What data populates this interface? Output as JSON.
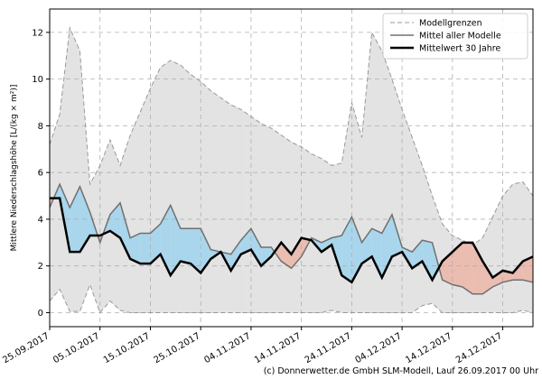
{
  "chart_data": {
    "type": "band-line",
    "y_label": "Mittlere Niederschlagshöhe [L/(kg × m²)]",
    "footer": "(c) Donnerwetter.de GmbH SLM-Modell, Lauf 26.09.2017 00 Uhr",
    "x": [
      "2017-09-25",
      "2017-09-27",
      "2017-09-29",
      "2017-10-01",
      "2017-10-03",
      "2017-10-05",
      "2017-10-07",
      "2017-10-09",
      "2017-10-11",
      "2017-10-13",
      "2017-10-15",
      "2017-10-17",
      "2017-10-19",
      "2017-10-21",
      "2017-10-23",
      "2017-10-25",
      "2017-10-27",
      "2017-10-29",
      "2017-10-31",
      "2017-11-02",
      "2017-11-04",
      "2017-11-06",
      "2017-11-08",
      "2017-11-10",
      "2017-11-12",
      "2017-11-14",
      "2017-11-16",
      "2017-11-18",
      "2017-11-20",
      "2017-11-22",
      "2017-11-24",
      "2017-11-26",
      "2017-11-28",
      "2017-11-30",
      "2017-12-02",
      "2017-12-04",
      "2017-12-06",
      "2017-12-08",
      "2017-12-10",
      "2017-12-12",
      "2017-12-14",
      "2017-12-16",
      "2017-12-18",
      "2017-12-20",
      "2017-12-22",
      "2017-12-24",
      "2017-12-26",
      "2017-12-28",
      "2017-12-30"
    ],
    "series": [
      {
        "name": "Modellgrenzen",
        "color": "#999999",
        "fill": "#e3e3e3",
        "dashed": true,
        "upper": [
          7.2,
          8.5,
          12.2,
          11.2,
          5.5,
          6.3,
          7.4,
          6.3,
          7.6,
          8.6,
          9.6,
          10.5,
          10.8,
          10.6,
          10.2,
          9.9,
          9.5,
          9.2,
          8.9,
          8.7,
          8.4,
          8.1,
          7.9,
          7.6,
          7.3,
          7.1,
          6.8,
          6.6,
          6.3,
          6.4,
          9.0,
          7.5,
          12.0,
          11.2,
          10.0,
          8.7,
          7.5,
          6.3,
          5.0,
          3.8,
          3.3,
          3.1,
          2.9,
          3.2,
          4.1,
          5.0,
          5.5,
          5.6,
          5.0
        ],
        "lower": [
          0.5,
          1.0,
          0.05,
          0.05,
          1.2,
          0,
          0.5,
          0.1,
          0,
          0,
          0,
          0,
          0,
          0,
          0,
          0,
          0,
          0,
          0,
          0,
          0,
          0,
          0,
          0,
          0,
          0,
          0,
          0,
          0.1,
          0,
          0,
          0,
          0,
          0,
          0,
          0,
          0,
          0.3,
          0.4,
          0,
          0,
          0,
          0,
          0,
          0,
          0,
          0,
          0.1,
          0
        ]
      },
      {
        "name": "Mittel aller Modelle",
        "color": "#707070",
        "values": [
          4.5,
          5.5,
          4.5,
          5.4,
          4.3,
          3.0,
          4.2,
          4.7,
          3.2,
          3.4,
          3.4,
          3.8,
          4.6,
          3.6,
          3.6,
          3.6,
          2.7,
          2.6,
          2.5,
          3.1,
          3.6,
          2.8,
          2.8,
          2.2,
          1.9,
          2.4,
          3.2,
          3.0,
          3.2,
          3.3,
          4.1,
          3.0,
          3.6,
          3.4,
          4.2,
          2.8,
          2.6,
          3.1,
          3.0,
          1.4,
          1.2,
          1.1,
          0.8,
          0.8,
          1.1,
          1.3,
          1.4,
          1.4,
          1.3
        ]
      },
      {
        "name": "Mittelwert 30 Jahre",
        "color": "#000000",
        "values": [
          4.9,
          4.9,
          2.6,
          2.6,
          3.3,
          3.3,
          3.5,
          3.2,
          2.3,
          2.1,
          2.1,
          2.5,
          1.6,
          2.2,
          2.1,
          1.7,
          2.3,
          2.6,
          1.8,
          2.5,
          2.7,
          2.0,
          2.4,
          3.0,
          2.5,
          3.2,
          3.1,
          2.6,
          2.9,
          1.6,
          1.3,
          2.1,
          2.4,
          1.5,
          2.4,
          2.6,
          1.9,
          2.2,
          1.4,
          2.2,
          2.6,
          3.0,
          3.0,
          2.2,
          1.5,
          1.8,
          1.7,
          2.2,
          2.4
        ]
      }
    ],
    "above_color": "#a9d6ec",
    "below_color": "#ebbcb0",
    "xlim": [
      "2017-09-25",
      "2017-12-30"
    ],
    "xticks": [
      {
        "value": "2017-09-25",
        "label": "25.09.2017"
      },
      {
        "value": "2017-10-05",
        "label": "05.10.2017"
      },
      {
        "value": "2017-10-15",
        "label": "15.10.2017"
      },
      {
        "value": "2017-10-25",
        "label": "25.10.2017"
      },
      {
        "value": "2017-11-04",
        "label": "04.11.2017"
      },
      {
        "value": "2017-11-14",
        "label": "14.11.2017"
      },
      {
        "value": "2017-11-24",
        "label": "24.11.2017"
      },
      {
        "value": "2017-12-04",
        "label": "04.12.2017"
      },
      {
        "value": "2017-12-14",
        "label": "14.12.2017"
      },
      {
        "value": "2017-12-24",
        "label": "24.12.2017"
      }
    ],
    "ylim": [
      -0.6,
      13
    ],
    "yticks": [
      0,
      2,
      4,
      6,
      8,
      10,
      12
    ],
    "grid": true,
    "legend": "upper right"
  }
}
